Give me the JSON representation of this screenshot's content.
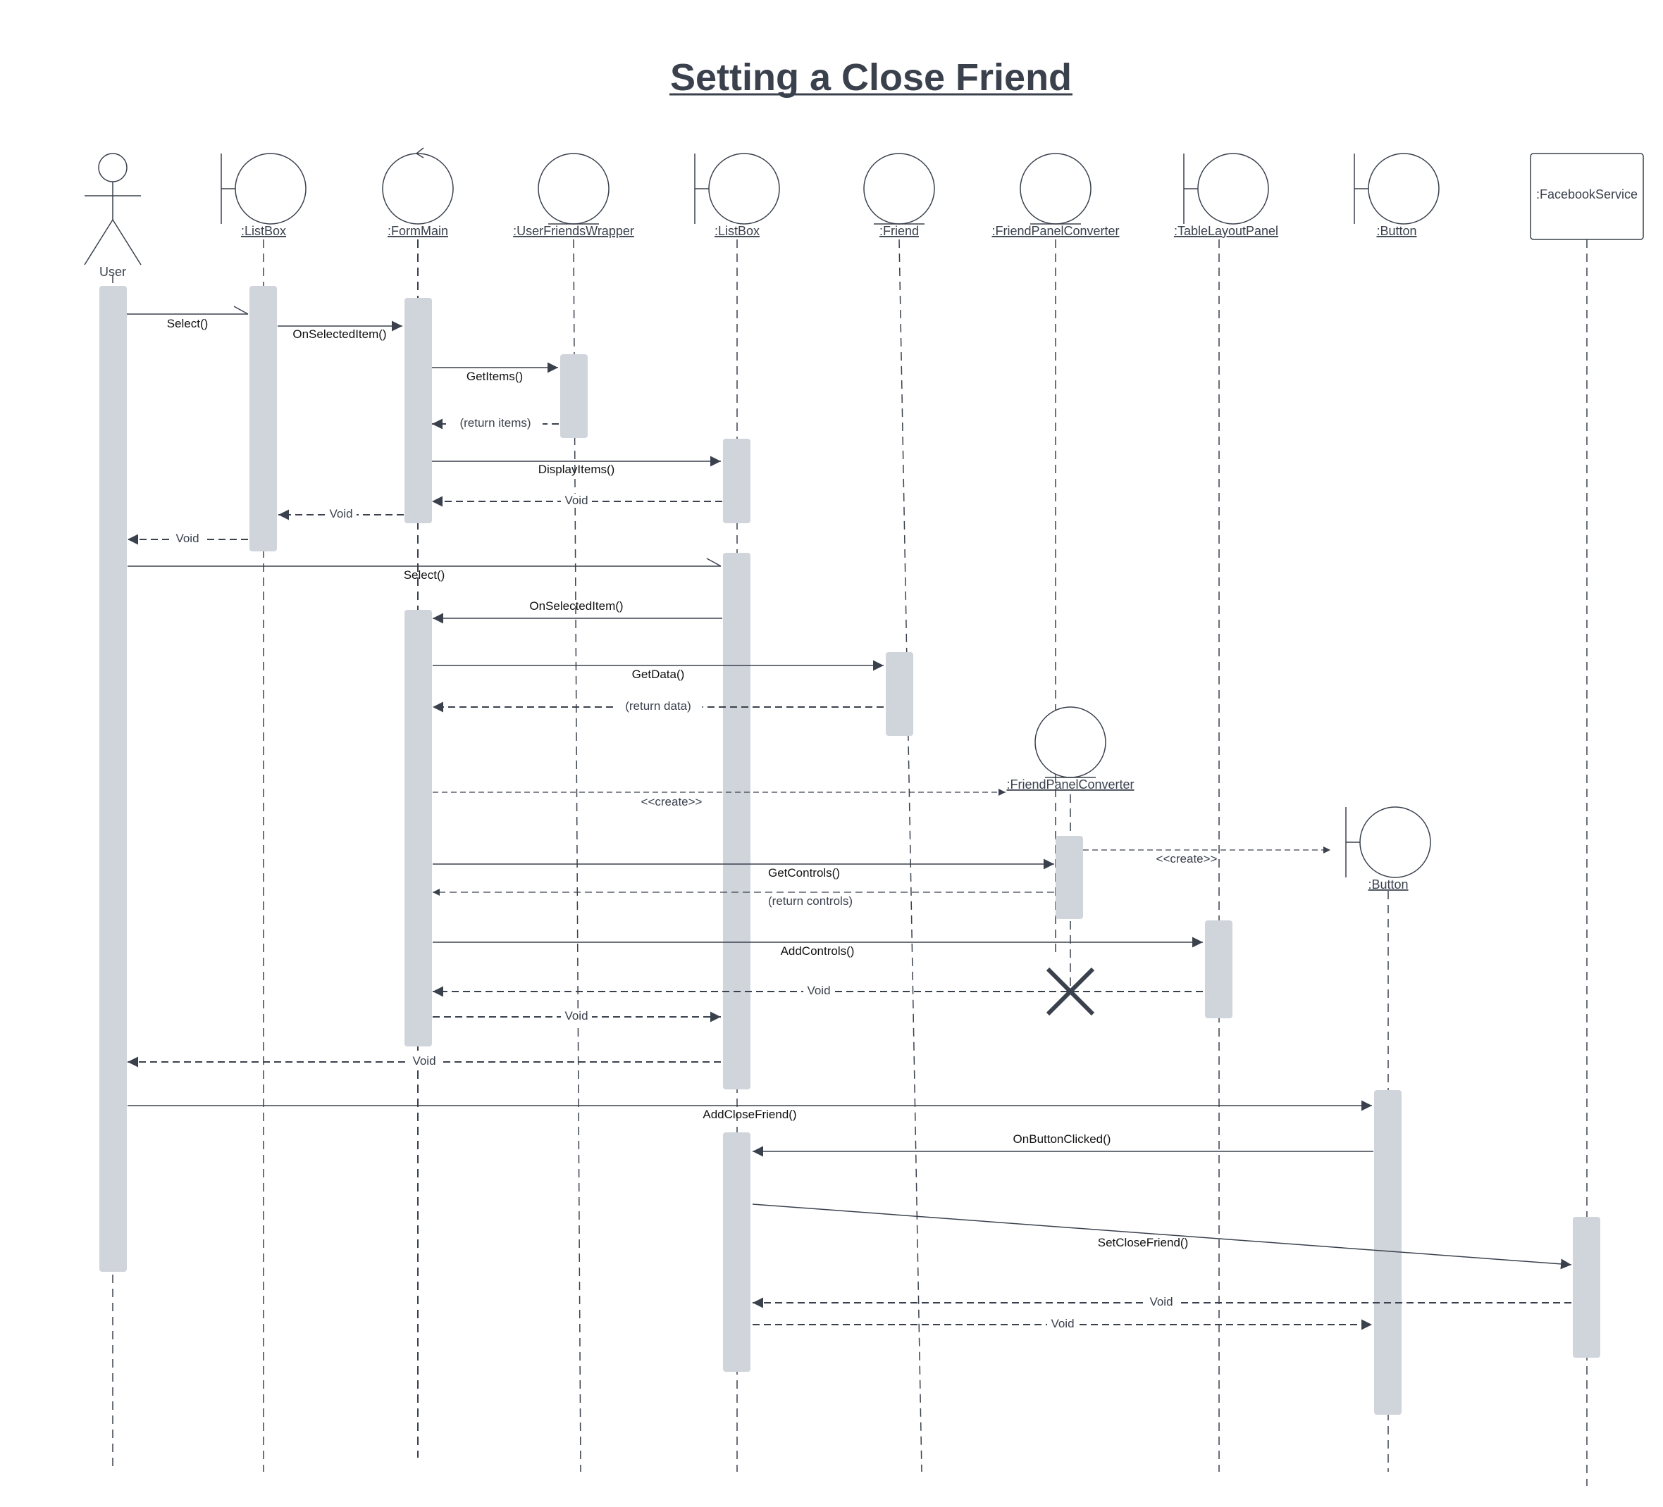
{
  "title": "Setting a Close Friend",
  "participants": [
    {
      "id": "user",
      "kind": "actor",
      "label": "User"
    },
    {
      "id": "listbox1",
      "kind": "boundary",
      "label": ":ListBox"
    },
    {
      "id": "formmain",
      "kind": "control",
      "label": ":FormMain"
    },
    {
      "id": "wrapper",
      "kind": "entity",
      "label": ":UserFriendsWrapper"
    },
    {
      "id": "listbox2",
      "kind": "boundary",
      "label": ":ListBox"
    },
    {
      "id": "friend",
      "kind": "entity",
      "label": ":Friend"
    },
    {
      "id": "converter",
      "kind": "entity",
      "label": ":FriendPanelConverter"
    },
    {
      "id": "tablelayout",
      "kind": "boundary",
      "label": ":TableLayoutPanel"
    },
    {
      "id": "button",
      "kind": "boundary",
      "label": ":Button"
    },
    {
      "id": "facebook",
      "kind": "box",
      "label": ":FacebookService"
    }
  ],
  "created_participants": [
    {
      "id": "converter2",
      "kind": "entity",
      "label": ":FriendPanelConverter"
    },
    {
      "id": "button2",
      "kind": "boundary",
      "label": ":Button"
    }
  ],
  "messages": [
    {
      "from": "user",
      "to": "listbox1",
      "label": "Select()",
      "style": "call-open"
    },
    {
      "from": "listbox1",
      "to": "formmain",
      "label": "OnSelectedItem()",
      "style": "call"
    },
    {
      "from": "formmain",
      "to": "wrapper",
      "label": "GetItems()",
      "style": "call"
    },
    {
      "from": "wrapper",
      "to": "formmain",
      "label": "(return items)",
      "style": "return"
    },
    {
      "from": "formmain",
      "to": "listbox2",
      "label": "DisplayItems()",
      "style": "call"
    },
    {
      "from": "listbox2",
      "to": "formmain",
      "label": "Void",
      "style": "return"
    },
    {
      "from": "formmain",
      "to": "listbox1",
      "label": "Void",
      "style": "return"
    },
    {
      "from": "listbox1",
      "to": "user",
      "label": "Void",
      "style": "return"
    },
    {
      "from": "user",
      "to": "listbox2",
      "label": "Select()",
      "style": "call-open"
    },
    {
      "from": "listbox2",
      "to": "formmain",
      "label": "OnSelectedItem()",
      "style": "call"
    },
    {
      "from": "formmain",
      "to": "friend",
      "label": "GetData()",
      "style": "call"
    },
    {
      "from": "friend",
      "to": "formmain",
      "label": "(return data)",
      "style": "return"
    },
    {
      "from": "formmain",
      "to": "converter2",
      "label": "<<create>>",
      "style": "create"
    },
    {
      "from": "converter2",
      "to": "button2",
      "label": "<<create>>",
      "style": "create"
    },
    {
      "from": "formmain",
      "to": "converter2",
      "label": "GetControls()",
      "style": "call"
    },
    {
      "from": "converter2",
      "to": "formmain",
      "label": "(return controls)",
      "style": "return-light"
    },
    {
      "from": "formmain",
      "to": "tablelayout",
      "label": "AddControls()",
      "style": "call"
    },
    {
      "from": "tablelayout",
      "to": "formmain",
      "label": "Void",
      "style": "return"
    },
    {
      "from": "formmain",
      "to": "listbox2",
      "label": "Void",
      "style": "return"
    },
    {
      "from": "listbox2",
      "to": "user",
      "label": "Void",
      "style": "return"
    },
    {
      "from": "user",
      "to": "button2",
      "label": "AddCloseFriend()",
      "style": "call"
    },
    {
      "from": "button2",
      "to": "listbox2",
      "label": "OnButtonClicked()",
      "style": "call"
    },
    {
      "from": "listbox2",
      "to": "facebook",
      "label": "SetCloseFriend()",
      "style": "call"
    },
    {
      "from": "facebook",
      "to": "listbox2",
      "label": "Void",
      "style": "return"
    },
    {
      "from": "listbox2",
      "to": "button2",
      "label": "Void",
      "style": "return"
    }
  ],
  "destroyed": [
    "converter2"
  ],
  "colors": {
    "title": "#3a414d",
    "line": "#3a414d",
    "activation": "#d0d4db",
    "background": "#ffffff"
  }
}
